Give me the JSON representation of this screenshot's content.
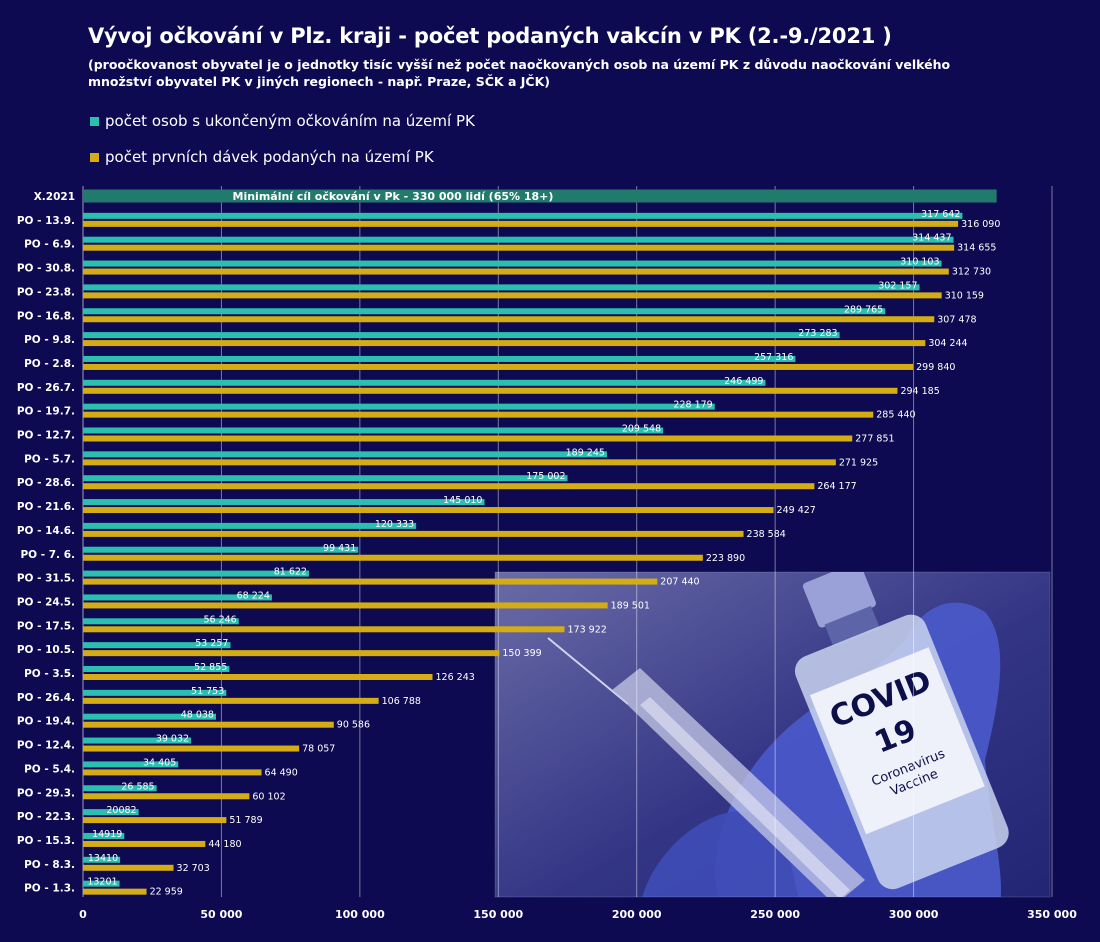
{
  "title": "Vývoj očkování v Plz. kraji - počet podaných vakcín v PK (2.-9./2021 )",
  "subtitle": "(proočkovanost obyvatel je o jednotky tisíc vyšší než počet naočkovaných osob na území PK z důvodu naočkování velkého množství obyvatel PK v jiných regionech - např. Praze, SČK a JČK)",
  "colors": {
    "background": "#0d0a52",
    "completed": "#2bbfb0",
    "first": "#d4ac16",
    "target": "#227a6d"
  },
  "legend": [
    {
      "label": "počet osob s ukončeným očkováním na území PK",
      "color": "#2bbfb0"
    },
    {
      "label": "počet prvních dávek podaných na území PK",
      "color": "#d4ac16"
    }
  ],
  "chart_data": {
    "type": "bar",
    "orientation": "horizontal",
    "xlim": [
      0,
      350000
    ],
    "x_ticks": [
      "0",
      "50 000",
      "100 000",
      "150 000",
      "200 000",
      "250 000",
      "300 000",
      "350 000"
    ],
    "target": {
      "category": "X.2021",
      "value": 330000,
      "label": "Minimální cíl očkování v Pk - 330 000 lidí  (65% 18+)"
    },
    "categories": [
      "PO - 13.9.",
      "PO - 6.9.",
      "PO - 30.8.",
      "PO - 23.8.",
      "PO - 16.8.",
      "PO - 9.8.",
      "PO - 2.8.",
      "PO - 26.7.",
      "PO - 19.7.",
      "PO - 12.7.",
      "PO - 5.7.",
      "PO - 28.6.",
      "PO - 21.6.",
      "PO - 14.6.",
      "PO - 7. 6.",
      "PO - 31.5.",
      "PO - 24.5.",
      "PO - 17.5.",
      "PO - 10.5.",
      "PO - 3.5.",
      "PO - 26.4.",
      "PO - 19.4.",
      "PO - 12.4.",
      "PO - 5.4.",
      "PO - 29.3.",
      "PO - 22.3.",
      "PO - 15.3.",
      "PO - 8.3.",
      "PO - 1.3."
    ],
    "series": [
      {
        "name": "počet osob s ukončeným očkováním na území PK",
        "values": [
          317642,
          314437,
          310103,
          302157,
          289765,
          273283,
          257316,
          246499,
          228179,
          209548,
          189245,
          175002,
          145010,
          120333,
          99431,
          81622,
          68224,
          56246,
          53257,
          52855,
          51753,
          48038,
          39032,
          34405,
          26585,
          20082,
          14919,
          13410,
          13201
        ],
        "labels": [
          "317 642",
          "314 437",
          "310 103",
          "302 157",
          "289 765",
          "273 283",
          "257 316",
          "246 499",
          "228 179",
          "209 548",
          "189 245",
          "175 002",
          "145 010",
          "120 333",
          "99 431",
          "81 622",
          "68 224",
          "56 246",
          "53 257",
          "52 855",
          "51 753",
          "48 038",
          "39 032",
          "34 405",
          "26 585",
          "20082",
          "14919",
          "13410",
          "13201"
        ]
      },
      {
        "name": "počet prvních dávek podaných na území PK",
        "values": [
          316090,
          314655,
          312730,
          310159,
          307478,
          304244,
          299840,
          294185,
          285440,
          277851,
          271925,
          264177,
          249427,
          238584,
          223890,
          207440,
          189501,
          173922,
          150399,
          126243,
          106788,
          90586,
          78057,
          64490,
          60102,
          51789,
          44180,
          32703,
          22959
        ],
        "labels": [
          "316 090",
          "314 655",
          "312 730",
          "310 159",
          "307 478",
          "304 244",
          "299 840",
          "294 185",
          "285 440",
          "277 851",
          "271 925",
          "264 177",
          "249 427",
          "238 584",
          "223 890",
          "207 440",
          "189 501",
          "173 922",
          "150 399",
          "126 243",
          "106 788",
          "90 586",
          "78 057",
          "64 490",
          "60 102",
          "51 789",
          "44 180",
          "32 703",
          "22 959"
        ]
      }
    ],
    "image_text": [
      "COVID",
      "19",
      "Coronavirus",
      "Vaccine"
    ]
  }
}
